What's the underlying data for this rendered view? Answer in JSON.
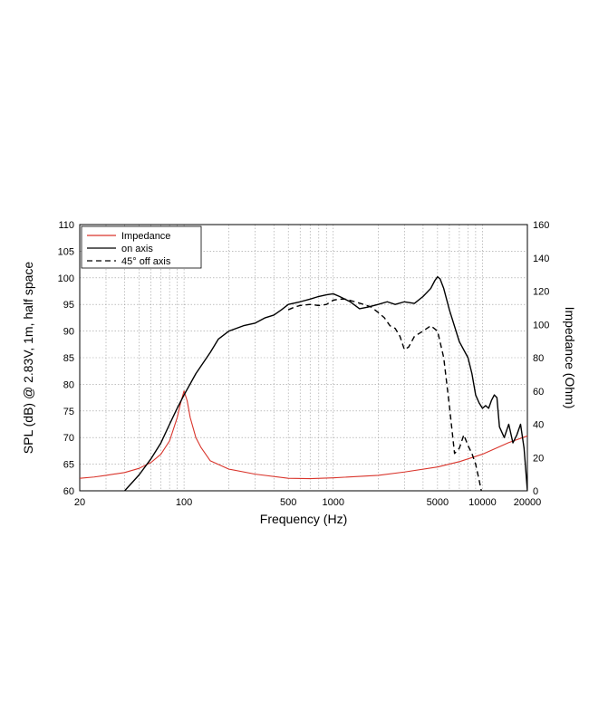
{
  "chart_data": {
    "type": "line",
    "xlabel": "Frequency (Hz)",
    "ylabel_left": "SPL (dB) @ 2.83V, 1m, half space",
    "ylabel_right": "Impedance (Ohm)",
    "x_scale": "log",
    "xlim": [
      20,
      20000
    ],
    "ylim_left": [
      60,
      110
    ],
    "ylim_right": [
      0,
      160
    ],
    "x_ticks": [
      {
        "value": 20,
        "label": "20"
      },
      {
        "value": 100,
        "label": "100"
      },
      {
        "value": 500,
        "label": "500"
      },
      {
        "value": 1000,
        "label": "1000"
      },
      {
        "value": 5000,
        "label": "5000"
      },
      {
        "value": 10000,
        "label": "10000"
      },
      {
        "value": 20000,
        "label": "20000"
      }
    ],
    "y_left_ticks": [
      "60",
      "65",
      "70",
      "75",
      "80",
      "85",
      "90",
      "95",
      "100",
      "105",
      "110"
    ],
    "y_right_ticks": [
      "0",
      "20",
      "40",
      "60",
      "80",
      "100",
      "120",
      "140",
      "160"
    ],
    "grid": true,
    "legend": {
      "position": "top-left",
      "entries": [
        "Impedance",
        "on axis",
        "45° off axis"
      ]
    },
    "series": [
      {
        "name": "Impedance",
        "axis": "right",
        "color": "#d9342b",
        "dash": "solid",
        "x": [
          20,
          25,
          30,
          40,
          50,
          60,
          70,
          80,
          90,
          95,
          100,
          105,
          110,
          120,
          130,
          150,
          200,
          300,
          500,
          700,
          1000,
          2000,
          3000,
          5000,
          7000,
          10000,
          15000,
          20000
        ],
        "y": [
          7.5,
          8.3,
          9.3,
          11,
          13.5,
          17,
          22,
          30,
          44,
          53,
          60,
          54,
          44,
          32,
          26,
          18,
          13,
          10,
          7.5,
          7.3,
          7.8,
          9.3,
          11.3,
          14.3,
          17.5,
          22,
          29,
          33
        ]
      },
      {
        "name": "on axis",
        "axis": "left",
        "color": "#000000",
        "dash": "solid",
        "x": [
          40,
          50,
          60,
          70,
          80,
          90,
          100,
          120,
          150,
          170,
          200,
          250,
          300,
          350,
          400,
          450,
          500,
          600,
          700,
          800,
          900,
          1000,
          1100,
          1300,
          1500,
          1700,
          2000,
          2300,
          2600,
          3000,
          3500,
          4000,
          4500,
          4800,
          5000,
          5200,
          5500,
          6000,
          7000,
          8000,
          8500,
          9000,
          9500,
          10000,
          10500,
          11000,
          11500,
          12000,
          12500,
          13000,
          14000,
          15000,
          16000,
          17000,
          18000,
          19000,
          20000
        ],
        "y": [
          60,
          63,
          66,
          69,
          72.5,
          75.5,
          78,
          82,
          86,
          88.5,
          90,
          91,
          91.5,
          92.5,
          93,
          94,
          95,
          95.5,
          96,
          96.5,
          96.8,
          97,
          96.5,
          95.5,
          94.2,
          94.5,
          95,
          95.5,
          95,
          95.5,
          95.2,
          96.5,
          98,
          99.5,
          100.2,
          99.8,
          98,
          94,
          88,
          85,
          82,
          78,
          76.5,
          75.5,
          76,
          75.5,
          77,
          78,
          77.5,
          72,
          70,
          72.5,
          69,
          70.5,
          72.5,
          68,
          60
        ]
      },
      {
        "name": "45° off axis",
        "axis": "left",
        "color": "#000000",
        "dash": "6,4",
        "x": [
          500,
          550,
          600,
          700,
          800,
          900,
          1000,
          1100,
          1200,
          1400,
          1600,
          1800,
          2000,
          2200,
          2400,
          2600,
          2800,
          3000,
          3200,
          3500,
          4000,
          4500,
          5000,
          5500,
          6000,
          6500,
          7000,
          7500,
          8000,
          8500,
          9000,
          9500,
          10000
        ],
        "y": [
          94,
          94.5,
          94.8,
          95,
          94.8,
          95,
          95.8,
          96,
          96,
          95.5,
          95,
          94.5,
          93.5,
          92.5,
          91,
          90.5,
          89,
          86.5,
          87,
          89,
          90,
          91,
          90,
          85,
          76,
          67,
          68,
          70.5,
          68.5,
          67,
          65,
          62,
          59
        ]
      }
    ]
  }
}
